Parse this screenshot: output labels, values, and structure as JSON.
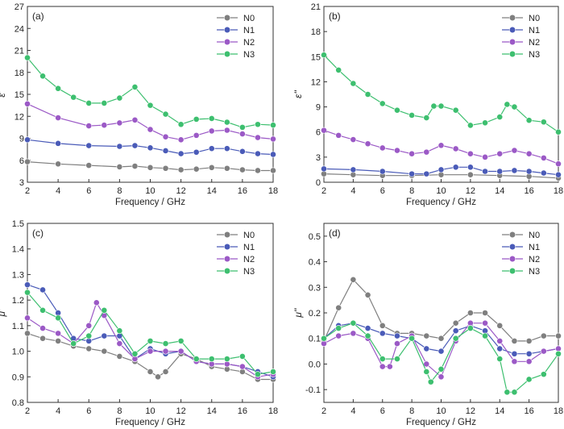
{
  "chart_data": [
    {
      "type": "line",
      "panel_label": "(a)",
      "xlabel": "Frequency / GHz",
      "ylabel": "ε'",
      "xlim": [
        2,
        18
      ],
      "ylim": [
        3,
        27
      ],
      "xticks": [
        2,
        4,
        6,
        8,
        10,
        12,
        14,
        16,
        18
      ],
      "yticks": [
        3,
        6,
        9,
        12,
        15,
        18,
        21,
        24,
        27
      ],
      "legend_position": "top-right",
      "series": [
        {
          "name": "N0",
          "color": "#7f7f7f",
          "x": [
            2,
            4,
            6,
            8,
            9,
            10,
            11,
            12,
            13,
            14,
            15,
            16,
            17,
            18
          ],
          "y": [
            5.8,
            5.5,
            5.3,
            5.1,
            5.2,
            5.0,
            4.9,
            4.7,
            4.8,
            5.0,
            4.9,
            4.7,
            4.6,
            4.6
          ]
        },
        {
          "name": "N1",
          "color": "#4a5bb8",
          "x": [
            2,
            4,
            6,
            8,
            9,
            10,
            11,
            12,
            13,
            14,
            15,
            16,
            17,
            18
          ],
          "y": [
            8.8,
            8.3,
            8.0,
            7.9,
            8.0,
            7.7,
            7.3,
            6.9,
            7.1,
            7.6,
            7.6,
            7.2,
            6.9,
            6.8
          ]
        },
        {
          "name": "N2",
          "color": "#9b59c6",
          "x": [
            2,
            4,
            6,
            7,
            8,
            9,
            10,
            11,
            12,
            13,
            14,
            15,
            16,
            17,
            18
          ],
          "y": [
            13.7,
            11.8,
            10.7,
            10.8,
            11.1,
            11.5,
            10.2,
            9.2,
            8.8,
            9.4,
            10.0,
            10.1,
            9.6,
            9.1,
            8.9
          ]
        },
        {
          "name": "N3",
          "color": "#3dbf6f",
          "x": [
            2,
            3,
            4,
            5,
            6,
            7,
            8,
            9,
            10,
            11,
            12,
            13,
            14,
            15,
            16,
            17,
            18
          ],
          "y": [
            20.0,
            17.5,
            15.8,
            14.6,
            13.8,
            13.8,
            14.5,
            16.0,
            13.5,
            12.3,
            10.9,
            11.6,
            11.7,
            11.2,
            10.5,
            10.9,
            10.8
          ]
        }
      ]
    },
    {
      "type": "line",
      "panel_label": "(b)",
      "xlabel": "Frequency / GHz",
      "ylabel": "ε''",
      "xlim": [
        2,
        18
      ],
      "ylim": [
        0,
        21
      ],
      "xticks": [
        2,
        4,
        6,
        8,
        10,
        12,
        14,
        16,
        18
      ],
      "yticks": [
        0,
        3,
        6,
        9,
        12,
        15,
        18,
        21
      ],
      "legend_position": "top-right",
      "series": [
        {
          "name": "N0",
          "color": "#7f7f7f",
          "x": [
            2,
            4,
            6,
            8,
            10,
            12,
            14,
            16,
            18
          ],
          "y": [
            1.0,
            0.9,
            0.8,
            0.8,
            0.9,
            0.9,
            0.8,
            0.7,
            0.5
          ]
        },
        {
          "name": "N1",
          "color": "#4a5bb8",
          "x": [
            2,
            4,
            6,
            8,
            9,
            10,
            11,
            12,
            13,
            14,
            15,
            16,
            17,
            18
          ],
          "y": [
            1.6,
            1.5,
            1.3,
            1.0,
            1.0,
            1.5,
            1.8,
            1.8,
            1.3,
            1.3,
            1.4,
            1.3,
            1.1,
            0.9
          ]
        },
        {
          "name": "N2",
          "color": "#9b59c6",
          "x": [
            2,
            3,
            4,
            5,
            6,
            7,
            8,
            9,
            10,
            11,
            12,
            13,
            14,
            15,
            16,
            17,
            18
          ],
          "y": [
            6.2,
            5.6,
            5.1,
            4.6,
            4.1,
            3.8,
            3.4,
            3.6,
            4.4,
            4.0,
            3.4,
            3.0,
            3.4,
            3.8,
            3.4,
            2.9,
            2.2
          ]
        },
        {
          "name": "N3",
          "color": "#3dbf6f",
          "x": [
            2,
            3,
            4,
            5,
            6,
            7,
            8,
            9,
            9.5,
            10,
            11,
            12,
            13,
            14,
            14.5,
            15,
            16,
            17,
            18
          ],
          "y": [
            15.2,
            13.4,
            11.8,
            10.5,
            9.4,
            8.6,
            8.0,
            7.7,
            9.1,
            9.1,
            8.6,
            6.8,
            7.1,
            7.8,
            9.3,
            9.0,
            7.4,
            7.2,
            6.0
          ]
        }
      ]
    },
    {
      "type": "line",
      "panel_label": "(c)",
      "xlabel": "Frequency / GHz",
      "ylabel": "μ'",
      "xlim": [
        2,
        18
      ],
      "ylim": [
        0.8,
        1.5
      ],
      "xticks": [
        2,
        4,
        6,
        8,
        10,
        12,
        14,
        16,
        18
      ],
      "yticks": [
        0.8,
        0.9,
        1.0,
        1.1,
        1.2,
        1.3,
        1.4,
        1.5
      ],
      "legend_position": "top-right",
      "series": [
        {
          "name": "N0",
          "color": "#7f7f7f",
          "x": [
            2,
            3,
            4,
            5,
            6,
            7,
            8,
            9,
            10,
            10.5,
            11,
            12,
            13,
            14,
            15,
            16,
            17,
            18
          ],
          "y": [
            1.07,
            1.05,
            1.04,
            1.02,
            1.01,
            1.0,
            0.98,
            0.96,
            0.92,
            0.9,
            0.92,
            0.99,
            0.97,
            0.94,
            0.93,
            0.92,
            0.89,
            0.89
          ]
        },
        {
          "name": "N1",
          "color": "#4a5bb8",
          "x": [
            2,
            3,
            4,
            5,
            6,
            7,
            8,
            9,
            10,
            11,
            12,
            13,
            14,
            15,
            16,
            17,
            18
          ],
          "y": [
            1.26,
            1.24,
            1.15,
            1.05,
            1.04,
            1.06,
            1.06,
            0.97,
            1.01,
            0.99,
            1.0,
            0.96,
            0.95,
            0.95,
            0.94,
            0.92,
            0.9
          ]
        },
        {
          "name": "N2",
          "color": "#9b59c6",
          "x": [
            2,
            3,
            4,
            5,
            6,
            6.5,
            7,
            8,
            9,
            10,
            11,
            12,
            13,
            14,
            15,
            16,
            17,
            18
          ],
          "y": [
            1.13,
            1.09,
            1.07,
            1.03,
            1.1,
            1.19,
            1.14,
            1.03,
            0.97,
            1.0,
            1.0,
            1.0,
            0.96,
            0.95,
            0.95,
            0.94,
            0.9,
            0.91
          ]
        },
        {
          "name": "N3",
          "color": "#3dbf6f",
          "x": [
            2,
            3,
            4,
            5,
            6,
            7,
            8,
            9,
            10,
            11,
            12,
            13,
            14,
            15,
            16,
            17,
            18
          ],
          "y": [
            1.23,
            1.16,
            1.13,
            1.03,
            1.06,
            1.16,
            1.08,
            0.99,
            1.04,
            1.03,
            1.04,
            0.97,
            0.97,
            0.97,
            0.98,
            0.91,
            0.92
          ]
        }
      ]
    },
    {
      "type": "line",
      "panel_label": "(d)",
      "xlabel": "Frequency / GHz",
      "ylabel": "μ''",
      "xlim": [
        2,
        18
      ],
      "ylim": [
        -0.15,
        0.55
      ],
      "xticks": [
        2,
        4,
        6,
        8,
        10,
        12,
        14,
        16,
        18
      ],
      "yticks": [
        -0.1,
        0.0,
        0.1,
        0.2,
        0.3,
        0.4,
        0.5
      ],
      "legend_position": "top-right",
      "series": [
        {
          "name": "N0",
          "color": "#7f7f7f",
          "x": [
            2,
            3,
            4,
            5,
            6,
            7,
            8,
            9,
            10,
            11,
            12,
            13,
            14,
            15,
            16,
            17,
            18
          ],
          "y": [
            0.09,
            0.22,
            0.33,
            0.27,
            0.15,
            0.12,
            0.12,
            0.11,
            0.1,
            0.16,
            0.2,
            0.2,
            0.15,
            0.09,
            0.09,
            0.11,
            0.11
          ]
        },
        {
          "name": "N1",
          "color": "#4a5bb8",
          "x": [
            2,
            3,
            4,
            5,
            6,
            7,
            8,
            9,
            10,
            11,
            12,
            13,
            14,
            15,
            16,
            17,
            18
          ],
          "y": [
            0.1,
            0.15,
            0.16,
            0.14,
            0.12,
            0.11,
            0.1,
            0.06,
            0.05,
            0.13,
            0.15,
            0.13,
            0.06,
            0.04,
            0.04,
            0.05,
            0.06
          ]
        },
        {
          "name": "N2",
          "color": "#9b59c6",
          "x": [
            2,
            3,
            4,
            5,
            6,
            6.5,
            7,
            8,
            9,
            10,
            11,
            12,
            13,
            14,
            15,
            16,
            17,
            18
          ],
          "y": [
            0.08,
            0.11,
            0.12,
            0.1,
            -0.01,
            -0.01,
            0.08,
            0.11,
            0.0,
            -0.05,
            0.09,
            0.16,
            0.16,
            0.09,
            0.01,
            0.01,
            0.05,
            0.06
          ]
        },
        {
          "name": "N3",
          "color": "#3dbf6f",
          "x": [
            2,
            3,
            4,
            5,
            6,
            7,
            8,
            9,
            9.3,
            10,
            11,
            12,
            13,
            14,
            14.5,
            15,
            16,
            17,
            18
          ],
          "y": [
            0.1,
            0.14,
            0.16,
            0.11,
            0.02,
            0.02,
            0.1,
            -0.03,
            -0.07,
            -0.02,
            0.1,
            0.14,
            0.11,
            0.02,
            -0.11,
            -0.11,
            -0.06,
            -0.04,
            0.04
          ]
        }
      ]
    }
  ]
}
